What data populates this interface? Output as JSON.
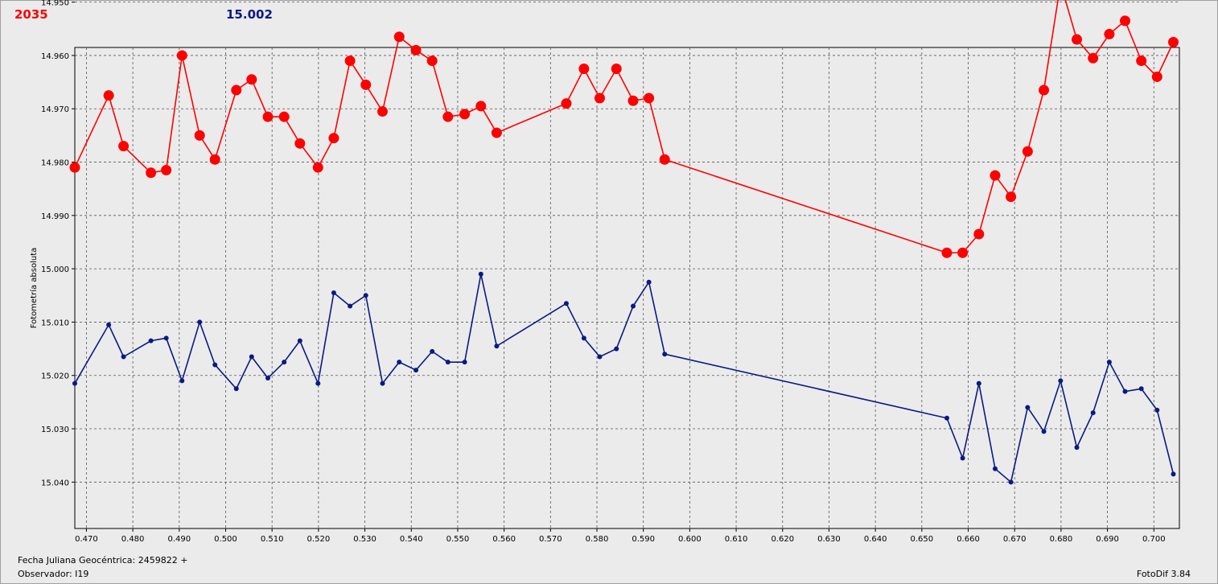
{
  "header": {
    "left_value": "2035",
    "right_value": "15.002"
  },
  "footer": {
    "julian_label": "Fecha Juliana Geocéntrica: 2459822 +",
    "observer_label": "Observador: I19",
    "app_version": "FotoDif 3.84"
  },
  "colors": {
    "red_series": "#ff0000",
    "blue_series": "#0a1a82"
  },
  "chart_data": {
    "type": "line",
    "ylabel": "Fotometría absoluta",
    "xlabel": "",
    "xlim": [
      0.4675,
      0.7055
    ],
    "ylim": [
      15.0487,
      14.9585
    ],
    "y_inverted": true,
    "grid": true,
    "x_ticks": [
      "0.470",
      "0.480",
      "0.490",
      "0.500",
      "0.510",
      "0.520",
      "0.530",
      "0.540",
      "0.550",
      "0.560",
      "0.570",
      "0.580",
      "0.590",
      "0.600",
      "0.610",
      "0.620",
      "0.630",
      "0.640",
      "0.650",
      "0.660",
      "0.670",
      "0.680",
      "0.690",
      "0.700"
    ],
    "y_ticks": [
      "14.950",
      "14.960",
      "14.970",
      "14.980",
      "14.990",
      "15.000",
      "15.010",
      "15.020",
      "15.030",
      "15.040"
    ],
    "series": [
      {
        "name": "2035",
        "color": "#ff0000",
        "marker": "large-circle",
        "x": [
          0.4675,
          0.4748,
          0.478,
          0.4839,
          0.4872,
          0.4906,
          0.4944,
          0.4977,
          0.5023,
          0.5056,
          0.5091,
          0.5126,
          0.516,
          0.5199,
          0.5233,
          0.5268,
          0.5302,
          0.5338,
          0.5374,
          0.541,
          0.5445,
          0.5479,
          0.5515,
          0.555,
          0.5584,
          0.5734,
          0.5772,
          0.5806,
          0.5842,
          0.5878,
          0.5912,
          0.5946,
          0.6554,
          0.6588,
          0.6623,
          0.6658,
          0.6692,
          0.6728,
          0.6763,
          0.6799,
          0.6834,
          0.6869,
          0.6904,
          0.6938,
          0.6973,
          0.7007,
          0.7042
        ],
        "y": [
          14.981,
          14.9675,
          14.977,
          14.982,
          14.9815,
          14.96,
          14.975,
          14.9795,
          14.9665,
          14.9645,
          14.9715,
          14.9715,
          14.9765,
          14.981,
          14.9755,
          14.961,
          14.9655,
          14.9705,
          14.9565,
          14.959,
          14.961,
          14.9715,
          14.971,
          14.9695,
          14.9745,
          14.969,
          14.9625,
          14.968,
          14.9625,
          14.9685,
          14.968,
          14.9795,
          14.997,
          14.997,
          14.9935,
          14.9825,
          14.9865,
          14.978,
          14.9665,
          14.9465,
          14.957,
          14.9605,
          14.956,
          14.9535,
          14.961,
          14.964,
          14.9575
        ]
      },
      {
        "name": "15.002",
        "color": "#0a1a82",
        "marker": "small-dot",
        "x": [
          0.4675,
          0.4748,
          0.478,
          0.4839,
          0.4872,
          0.4906,
          0.4944,
          0.4977,
          0.5023,
          0.5056,
          0.5091,
          0.5126,
          0.516,
          0.5199,
          0.5233,
          0.5268,
          0.5302,
          0.5338,
          0.5374,
          0.541,
          0.5445,
          0.5479,
          0.5515,
          0.555,
          0.5584,
          0.5734,
          0.5772,
          0.5806,
          0.5842,
          0.5878,
          0.5912,
          0.5946,
          0.6554,
          0.6588,
          0.6623,
          0.6658,
          0.6692,
          0.6728,
          0.6763,
          0.6799,
          0.6834,
          0.6869,
          0.6904,
          0.6938,
          0.6973,
          0.7007,
          0.7042
        ],
        "y": [
          15.0215,
          15.0105,
          15.0165,
          15.0135,
          15.013,
          15.021,
          15.01,
          15.018,
          15.0225,
          15.0165,
          15.0205,
          15.0175,
          15.0135,
          15.0215,
          15.0045,
          15.007,
          15.005,
          15.0215,
          15.0175,
          15.019,
          15.0155,
          15.0175,
          15.0175,
          15.001,
          15.0145,
          15.0065,
          15.013,
          15.0165,
          15.015,
          15.007,
          15.0025,
          15.016,
          15.028,
          15.0355,
          15.0215,
          15.0375,
          15.04,
          15.026,
          15.0305,
          15.021,
          15.0335,
          15.027,
          15.0175,
          15.023,
          15.0225,
          15.0265,
          15.0385
        ]
      }
    ]
  }
}
